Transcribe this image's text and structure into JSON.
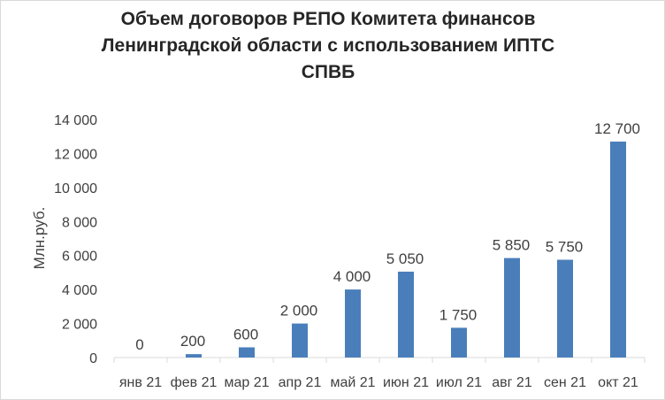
{
  "chart_data": {
    "type": "bar",
    "title": "Объем  договоров РЕПО Комитета финансов Ленинградской области с использованием ИПТС СПВБ",
    "ylabel": "Млн.руб.",
    "xlabel": "",
    "categories": [
      "янв 21",
      "фев 21",
      "мар 21",
      "апр 21",
      "май 21",
      "июн 21",
      "июл 21",
      "авг 21",
      "сен 21",
      "окт 21"
    ],
    "values": [
      0,
      200,
      600,
      2000,
      4000,
      5050,
      1750,
      5850,
      5750,
      12700
    ],
    "data_labels": [
      "0",
      "200",
      "600",
      "2 000",
      "4 000",
      "5 050",
      "1 750",
      "5 850",
      "5 750",
      "12 700"
    ],
    "ylim": [
      0,
      14000
    ],
    "yticks": [
      0,
      2000,
      4000,
      6000,
      8000,
      10000,
      12000,
      14000
    ],
    "ytick_labels": [
      "0",
      "2 000",
      "4 000",
      "6 000",
      "8 000",
      "10 000",
      "12 000",
      "14 000"
    ],
    "bar_color": "#4a7ebb",
    "grid": false,
    "legend": "none"
  }
}
